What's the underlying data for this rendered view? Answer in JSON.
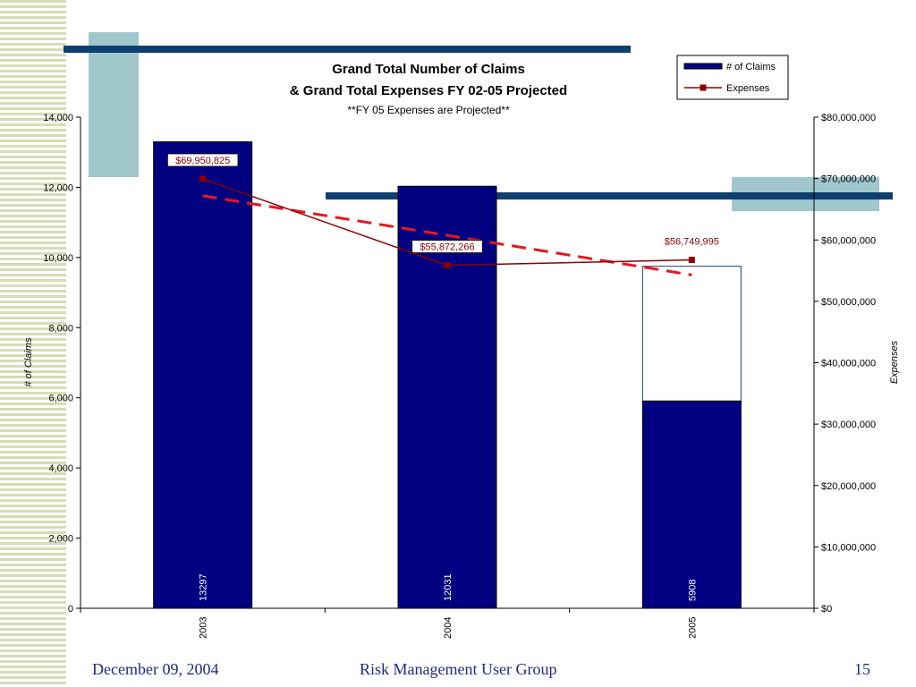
{
  "footer": {
    "date": "December 09, 2004",
    "group": "Risk Management User Group",
    "page": "15"
  },
  "colors": {
    "bar": "#000080",
    "expenses_line": "#8b0000",
    "trend": "#e8161b",
    "deco_blue": "#0e3f6e",
    "deco_teal": "#9fc7cc",
    "stripe": "#d8dcb6",
    "footer_text": "#1f2a8a"
  },
  "chart_data": {
    "type": "bar",
    "title": "Grand Total Number of Claims",
    "title_line2": "& Grand Total Expenses FY 02-05 Projected",
    "subtitle": "**FY 05 Expenses are Projected**",
    "categories": [
      "2003",
      "2004",
      "2005"
    ],
    "series": [
      {
        "name": "# of Claims",
        "type": "bar",
        "axis": "left",
        "values": [
          13297,
          12031,
          5908
        ],
        "labels": [
          "13297",
          "12031",
          "5908"
        ]
      },
      {
        "name": "Expenses",
        "type": "line",
        "axis": "right",
        "values": [
          69950825,
          55872266,
          56749995
        ],
        "labels": [
          "$69,950,825",
          "$55,872,266",
          "$56,749,995"
        ]
      }
    ],
    "projected_extension": {
      "category": "2005",
      "top_value": 9750
    },
    "trendline": {
      "style": "dashed",
      "start_value": 67200000,
      "end_value": 54300000
    },
    "ylabel": "# of Claims",
    "ylabel_right": "Expenses",
    "ylim": [
      0,
      14000
    ],
    "ylim_right": [
      0,
      80000000
    ],
    "yticks": [
      "0",
      "2,000",
      "4,000",
      "6,000",
      "8,000",
      "10,000",
      "12,000",
      "14,000"
    ],
    "yticks_right": [
      "$0",
      "$10,000,000",
      "$20,000,000",
      "$30,000,000",
      "$40,000,000",
      "$50,000,000",
      "$60,000,000",
      "$70,000,000",
      "$80,000,000"
    ],
    "legend": {
      "placement": "top-right",
      "items": [
        "# of Claims",
        "Expenses"
      ]
    },
    "grid": false
  }
}
